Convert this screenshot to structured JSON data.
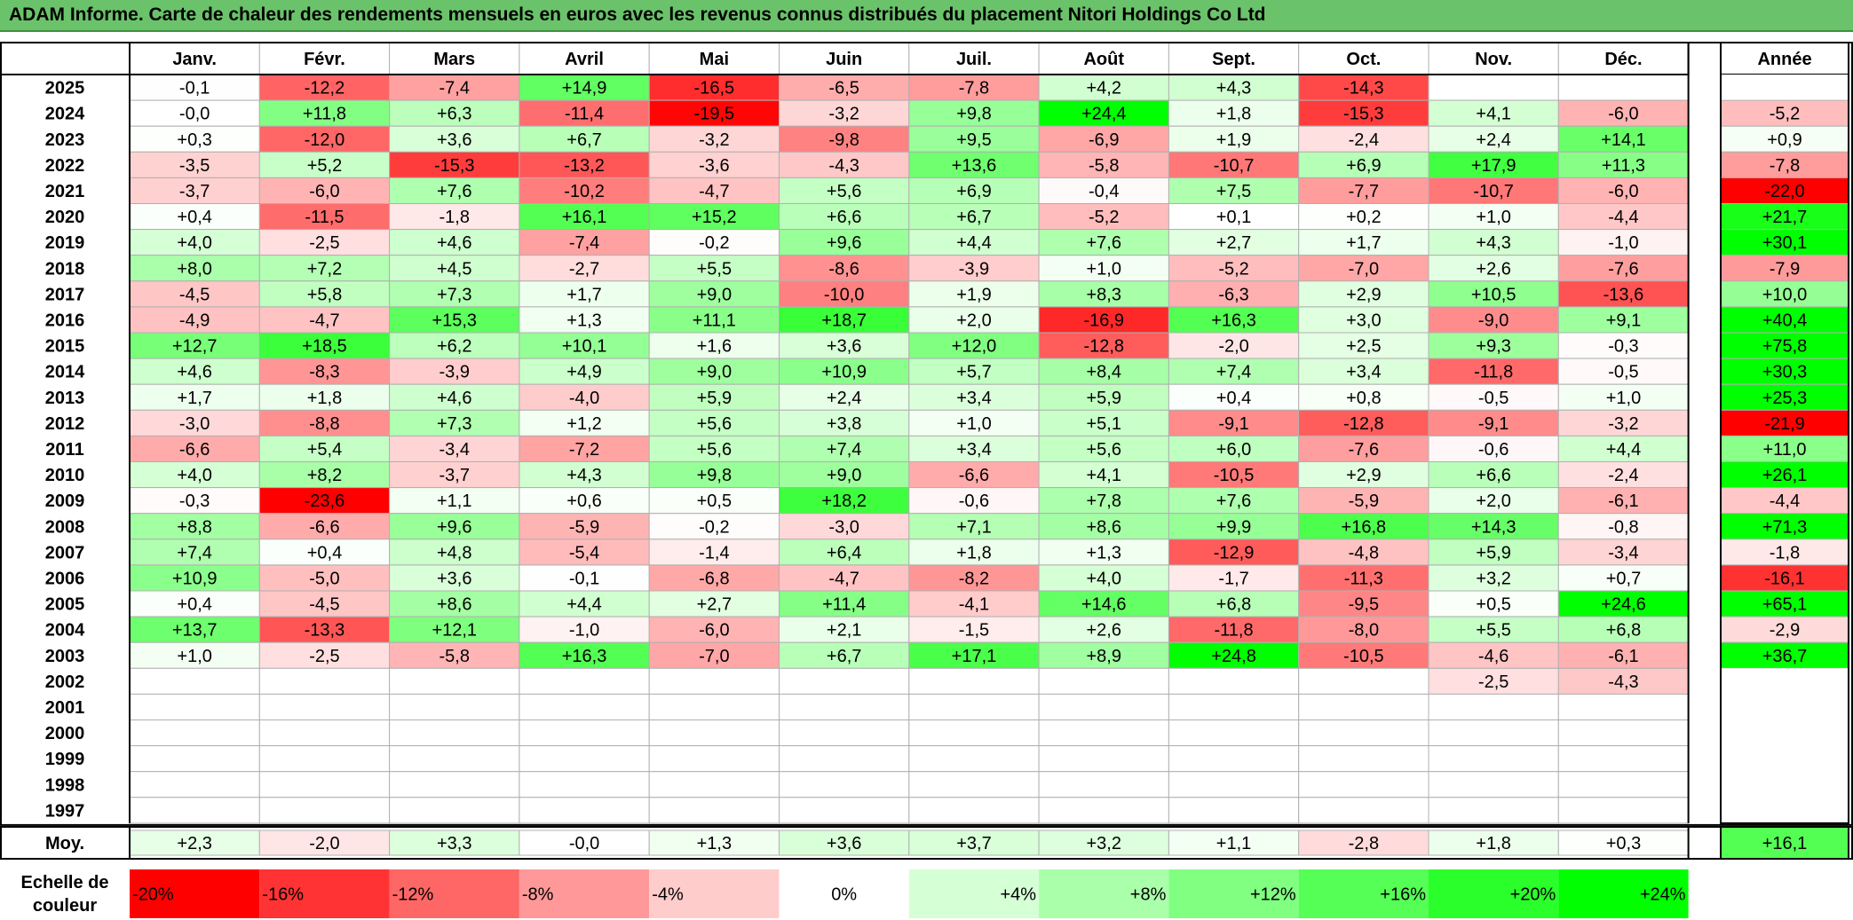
{
  "title": "ADAM Informe. Carte de chaleur des rendements mensuels en euros avec les revenus connus distribués du placement Nitori Holdings Co Ltd",
  "chart_data": {
    "type": "heatmap",
    "months": [
      "Janv.",
      "Févr.",
      "Mars",
      "Avril",
      "Mai",
      "Juin",
      "Juil.",
      "Août",
      "Sept.",
      "Oct.",
      "Nov.",
      "Déc."
    ],
    "year_header": "Année",
    "rows": [
      {
        "year": "2025",
        "values": [
          "-0,1",
          "-12,2",
          "-7,4",
          "+14,9",
          "-16,5",
          "-6,5",
          "-7,8",
          "+4,2",
          "+4,3",
          "-14,3",
          "",
          ""
        ],
        "annual": ""
      },
      {
        "year": "2024",
        "values": [
          "-0,0",
          "+11,8",
          "+6,3",
          "-11,4",
          "-19,5",
          "-3,2",
          "+9,8",
          "+24,4",
          "+1,8",
          "-15,3",
          "+4,1",
          "-6,0"
        ],
        "annual": "-5,2"
      },
      {
        "year": "2023",
        "values": [
          "+0,3",
          "-12,0",
          "+3,6",
          "+6,7",
          "-3,2",
          "-9,8",
          "+9,5",
          "-6,9",
          "+1,9",
          "-2,4",
          "+2,4",
          "+14,1"
        ],
        "annual": "+0,9"
      },
      {
        "year": "2022",
        "values": [
          "-3,5",
          "+5,2",
          "-15,3",
          "-13,2",
          "-3,6",
          "-4,3",
          "+13,6",
          "-5,8",
          "-10,7",
          "+6,9",
          "+17,9",
          "+11,3"
        ],
        "annual": "-7,8"
      },
      {
        "year": "2021",
        "values": [
          "-3,7",
          "-6,0",
          "+7,6",
          "-10,2",
          "-4,7",
          "+5,6",
          "+6,9",
          "-0,4",
          "+7,5",
          "-7,7",
          "-10,7",
          "-6,0"
        ],
        "annual": "-22,0"
      },
      {
        "year": "2020",
        "values": [
          "+0,4",
          "-11,5",
          "-1,8",
          "+16,1",
          "+15,2",
          "+6,6",
          "+6,7",
          "-5,2",
          "+0,1",
          "+0,2",
          "+1,0",
          "-4,4"
        ],
        "annual": "+21,7"
      },
      {
        "year": "2019",
        "values": [
          "+4,0",
          "-2,5",
          "+4,6",
          "-7,4",
          "-0,2",
          "+9,6",
          "+4,4",
          "+7,6",
          "+2,7",
          "+1,7",
          "+4,3",
          "-1,0"
        ],
        "annual": "+30,1"
      },
      {
        "year": "2018",
        "values": [
          "+8,0",
          "+7,2",
          "+4,5",
          "-2,7",
          "+5,5",
          "-8,6",
          "-3,9",
          "+1,0",
          "-5,2",
          "-7,0",
          "+2,6",
          "-7,6"
        ],
        "annual": "-7,9"
      },
      {
        "year": "2017",
        "values": [
          "-4,5",
          "+5,8",
          "+7,3",
          "+1,7",
          "+9,0",
          "-10,0",
          "+1,9",
          "+8,3",
          "-6,3",
          "+2,9",
          "+10,5",
          "-13,6"
        ],
        "annual": "+10,0"
      },
      {
        "year": "2016",
        "values": [
          "-4,9",
          "-4,7",
          "+15,3",
          "+1,3",
          "+11,1",
          "+18,7",
          "+2,0",
          "-16,9",
          "+16,3",
          "+3,0",
          "-9,0",
          "+9,1"
        ],
        "annual": "+40,4"
      },
      {
        "year": "2015",
        "values": [
          "+12,7",
          "+18,5",
          "+6,2",
          "+10,1",
          "+1,6",
          "+3,6",
          "+12,0",
          "-12,8",
          "-2,0",
          "+2,5",
          "+9,3",
          "-0,3"
        ],
        "annual": "+75,8"
      },
      {
        "year": "2014",
        "values": [
          "+4,6",
          "-8,3",
          "-3,9",
          "+4,9",
          "+9,0",
          "+10,9",
          "+5,7",
          "+8,4",
          "+7,4",
          "+3,4",
          "-11,8",
          "-0,5"
        ],
        "annual": "+30,3"
      },
      {
        "year": "2013",
        "values": [
          "+1,7",
          "+1,8",
          "+4,6",
          "-4,0",
          "+5,9",
          "+2,4",
          "+3,4",
          "+5,9",
          "+0,4",
          "+0,8",
          "-0,5",
          "+1,0"
        ],
        "annual": "+25,3"
      },
      {
        "year": "2012",
        "values": [
          "-3,0",
          "-8,8",
          "+7,3",
          "+1,2",
          "+5,6",
          "+3,8",
          "+1,0",
          "+5,1",
          "-9,1",
          "-12,8",
          "-9,1",
          "-3,2"
        ],
        "annual": "-21,9"
      },
      {
        "year": "2011",
        "values": [
          "-6,6",
          "+5,4",
          "-3,4",
          "-7,2",
          "+5,6",
          "+7,4",
          "+3,4",
          "+5,6",
          "+6,0",
          "-7,6",
          "-0,6",
          "+4,4"
        ],
        "annual": "+11,0"
      },
      {
        "year": "2010",
        "values": [
          "+4,0",
          "+8,2",
          "-3,7",
          "+4,3",
          "+9,8",
          "+9,0",
          "-6,6",
          "+4,1",
          "-10,5",
          "+2,9",
          "+6,6",
          "-2,4"
        ],
        "annual": "+26,1"
      },
      {
        "year": "2009",
        "values": [
          "-0,3",
          "-23,6",
          "+1,1",
          "+0,6",
          "+0,5",
          "+18,2",
          "-0,6",
          "+7,8",
          "+7,6",
          "-5,9",
          "+2,0",
          "-6,1"
        ],
        "annual": "-4,4"
      },
      {
        "year": "2008",
        "values": [
          "+8,8",
          "-6,6",
          "+9,6",
          "-5,9",
          "-0,2",
          "-3,0",
          "+7,1",
          "+8,6",
          "+9,9",
          "+16,8",
          "+14,3",
          "-0,8"
        ],
        "annual": "+71,3"
      },
      {
        "year": "2007",
        "values": [
          "+7,4",
          "+0,4",
          "+4,8",
          "-5,4",
          "-1,4",
          "+6,4",
          "+1,8",
          "+1,3",
          "-12,9",
          "-4,8",
          "+5,9",
          "-3,4"
        ],
        "annual": "-1,8"
      },
      {
        "year": "2006",
        "values": [
          "+10,9",
          "-5,0",
          "+3,6",
          "-0,1",
          "-6,8",
          "-4,7",
          "-8,2",
          "+4,0",
          "-1,7",
          "-11,3",
          "+3,2",
          "+0,7"
        ],
        "annual": "-16,1"
      },
      {
        "year": "2005",
        "values": [
          "+0,4",
          "-4,5",
          "+8,6",
          "+4,4",
          "+2,7",
          "+11,4",
          "-4,1",
          "+14,6",
          "+6,8",
          "-9,5",
          "+0,5",
          "+24,6"
        ],
        "annual": "+65,1"
      },
      {
        "year": "2004",
        "values": [
          "+13,7",
          "-13,3",
          "+12,1",
          "-1,0",
          "-6,0",
          "+2,1",
          "-1,5",
          "+2,6",
          "-11,8",
          "-8,0",
          "+5,5",
          "+6,8"
        ],
        "annual": "-2,9"
      },
      {
        "year": "2003",
        "values": [
          "+1,0",
          "-2,5",
          "-5,8",
          "+16,3",
          "-7,0",
          "+6,7",
          "+17,1",
          "+8,9",
          "+24,8",
          "-10,5",
          "-4,6",
          "-6,1"
        ],
        "annual": "+36,7"
      },
      {
        "year": "2002",
        "values": [
          "",
          "",
          "",
          "",
          "",
          "",
          "",
          "",
          "",
          "",
          "-2,5",
          "-4,3"
        ],
        "annual": ""
      },
      {
        "year": "2001",
        "values": [
          "",
          "",
          "",
          "",
          "",
          "",
          "",
          "",
          "",
          "",
          "",
          ""
        ],
        "annual": ""
      },
      {
        "year": "2000",
        "values": [
          "",
          "",
          "",
          "",
          "",
          "",
          "",
          "",
          "",
          "",
          "",
          ""
        ],
        "annual": ""
      },
      {
        "year": "1999",
        "values": [
          "",
          "",
          "",
          "",
          "",
          "",
          "",
          "",
          "",
          "",
          "",
          ""
        ],
        "annual": ""
      },
      {
        "year": "1998",
        "values": [
          "",
          "",
          "",
          "",
          "",
          "",
          "",
          "",
          "",
          "",
          "",
          ""
        ],
        "annual": ""
      },
      {
        "year": "1997",
        "values": [
          "",
          "",
          "",
          "",
          "",
          "",
          "",
          "",
          "",
          "",
          "",
          ""
        ],
        "annual": ""
      }
    ],
    "average": {
      "label": "Moy.",
      "values": [
        "+2,3",
        "-2,0",
        "+3,3",
        "-0,0",
        "+1,3",
        "+3,6",
        "+3,7",
        "+3,2",
        "+1,1",
        "-2,8",
        "+1,8",
        "+0,3"
      ],
      "annual": "+16,1"
    },
    "scale": {
      "label_line1": "Echelle de",
      "label_line2": "couleur",
      "entries": [
        {
          "label": "-20%",
          "value": -20
        },
        {
          "label": "-16%",
          "value": -16
        },
        {
          "label": "-12%",
          "value": -12
        },
        {
          "label": "-8%",
          "value": -8
        },
        {
          "label": "-4%",
          "value": -4
        },
        {
          "label": "0%",
          "value": 0
        },
        {
          "label": "+4%",
          "value": 4
        },
        {
          "label": "+8%",
          "value": 8
        },
        {
          "label": "+12%",
          "value": 12
        },
        {
          "label": "+16%",
          "value": 16
        },
        {
          "label": "+20%",
          "value": 20
        },
        {
          "label": "+24%",
          "value": 24
        }
      ]
    },
    "colors": {
      "negative_max": "#ff0000",
      "neutral": "#ffffff",
      "positive_max": "#00ff00",
      "title_bg": "#6ac36a"
    }
  }
}
